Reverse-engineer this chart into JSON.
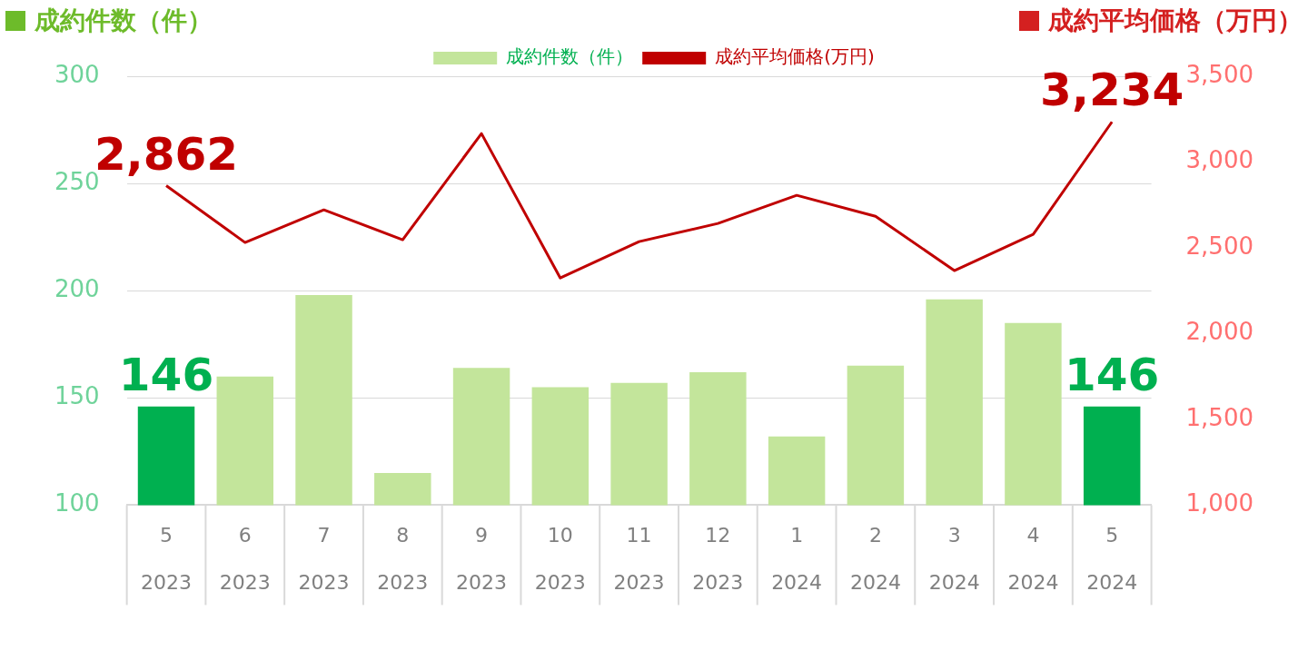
{
  "chart_data": {
    "type": "bar",
    "ylabel": "成約件数（件）",
    "y2label": "成約平均価格（万円）",
    "categories": [
      "5\n2023",
      "6\n2023",
      "7\n2023",
      "8\n2023",
      "9\n2023",
      "10\n2023",
      "11\n2023",
      "12\n2023",
      "1\n2024",
      "2\n2024",
      "3\n2024",
      "4\n2024",
      "5\n2024"
    ],
    "series": [
      {
        "name": "成約件数（件）",
        "color": "#c3e59b",
        "colors": [
          "#00b050",
          "#c3e59b",
          "#c3e59b",
          "#c3e59b",
          "#c3e59b",
          "#c3e59b",
          "#c3e59b",
          "#c3e59b",
          "#c3e59b",
          "#c3e59b",
          "#c3e59b",
          "#c3e59b",
          "#00b050"
        ],
        "values": [
          146,
          160,
          198,
          115,
          164,
          155,
          157,
          162,
          132,
          165,
          196,
          185,
          146
        ],
        "value_labels": [
          "146",
          null,
          null,
          null,
          null,
          null,
          null,
          null,
          null,
          null,
          null,
          null,
          "146"
        ]
      },
      {
        "name": "成約平均価格(万円)",
        "type": "line",
        "axis": "y2",
        "color": "#c00000",
        "values": [
          2862,
          2531,
          2721,
          2547,
          3166,
          2324,
          2536,
          2642,
          2806,
          2684,
          2367,
          2578,
          3234
        ],
        "value_labels": [
          "2,862",
          null,
          null,
          null,
          null,
          null,
          null,
          null,
          null,
          null,
          null,
          null,
          "3,234"
        ]
      }
    ],
    "ylim": [
      100,
      300
    ],
    "yticks": [
      100,
      150,
      200,
      250,
      300
    ],
    "y2lim": [
      1000,
      3500
    ],
    "y2ticks": [
      {
        "value": 1000,
        "label": "1,000"
      },
      {
        "value": 1500,
        "label": "1,500"
      },
      {
        "value": 2000,
        "label": "2,000"
      },
      {
        "value": 2500,
        "label": "2,500"
      },
      {
        "value": 3000,
        "label": "3,000"
      },
      {
        "value": 3500,
        "label": "3,500"
      }
    ],
    "grid": "y",
    "legend": "top",
    "marker": "none",
    "line_style": "solid"
  }
}
